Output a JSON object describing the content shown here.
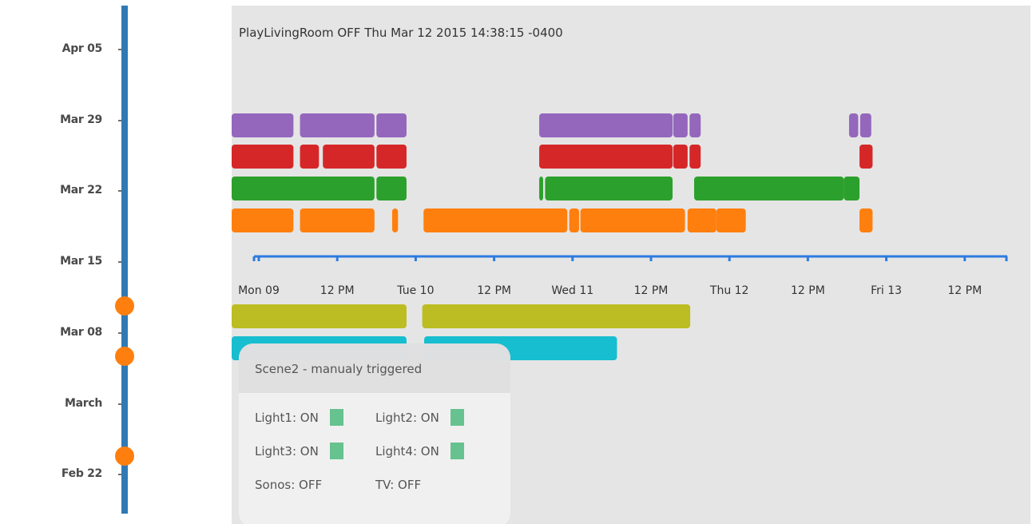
{
  "left_timeline": {
    "dates": [
      "Apr 05",
      "Mar 29",
      "Mar 22",
      "Mar 15",
      "Mar 08",
      "March",
      "Feb 22"
    ],
    "event_dot_color": "#ff7f0e",
    "axis_color": "#2f79b5"
  },
  "status": "PlayLivingRoom OFF Thu Mar 12 2015 14:38:15 -0400",
  "time_axis": {
    "ticks": [
      "Mon 09",
      "12 PM",
      "Tue 10",
      "12 PM",
      "Wed 11",
      "12 PM",
      "Thu 12",
      "12 PM",
      "Fri 13",
      "12 PM"
    ],
    "color": "#2d7be0"
  },
  "chart_data": {
    "type": "timeline",
    "x_unit": "hours since Mon 09 00:00",
    "series": [
      {
        "color": "#9467bd",
        "segments": [
          [
            -12,
            5.3
          ],
          [
            6.3,
            17.7
          ],
          [
            18,
            22.6
          ]
        ]
      },
      {
        "color": "#d62728",
        "segments": [
          [
            -12,
            5.3
          ],
          [
            6.3,
            9.2
          ],
          [
            9.8,
            17.7
          ],
          [
            18,
            22.6
          ]
        ]
      },
      {
        "color": "#2ca02c",
        "segments": [
          [
            -12,
            17.7
          ],
          [
            18,
            22.6
          ]
        ]
      },
      {
        "color": "#ff7f0e",
        "segments": [
          [
            -12,
            5.3
          ],
          [
            6.3,
            17.7
          ],
          [
            20.4,
            21.3
          ],
          [
            25.2,
            47.2
          ],
          [
            47.5,
            49
          ],
          [
            49.2,
            65.2
          ],
          [
            65.6,
            70
          ]
        ]
      },
      {
        "color": "#bcbd22",
        "segments": [
          [
            -12,
            22.6
          ],
          [
            25,
            66
          ]
        ]
      },
      {
        "color": "#17becf",
        "segments": [
          [
            -12,
            22.6
          ],
          [
            25.3,
            54.8
          ]
        ]
      }
    ]
  },
  "chart_extra_segments": {
    "purple": [
      [
        42.9,
        63.3
      ],
      [
        63.4,
        65.6
      ],
      [
        65.9,
        67.6
      ],
      [
        90.3,
        91.7
      ],
      [
        92,
        93.7
      ]
    ],
    "red": [
      [
        42.9,
        63.3
      ],
      [
        63.4,
        65.6
      ],
      [
        65.9,
        67.6
      ],
      [
        91.9,
        93.9
      ]
    ],
    "green": [
      [
        42.9,
        43.5
      ],
      [
        43.8,
        63.3
      ],
      [
        66.6,
        89.5
      ],
      [
        89.5,
        91.9
      ]
    ],
    "orange": [
      [
        70,
        74.5
      ],
      [
        91.9,
        93.9
      ]
    ]
  },
  "scene_card": {
    "title": "Scene2 - manualy triggered",
    "devices": [
      {
        "label": "Light1: ON",
        "swatch": true
      },
      {
        "label": "Light2: ON",
        "swatch": true
      },
      {
        "label": "Light3: ON",
        "swatch": true
      },
      {
        "label": "Light4: ON",
        "swatch": true
      },
      {
        "label": "Sonos: OFF",
        "swatch": false
      },
      {
        "label": "TV: OFF",
        "swatch": false
      }
    ],
    "swatch_color": "#66c28e"
  }
}
